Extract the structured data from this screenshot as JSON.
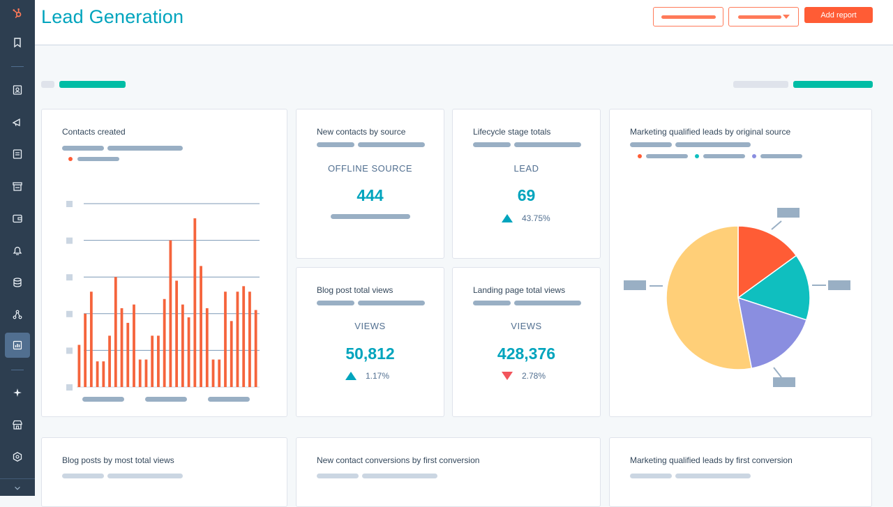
{
  "app": {
    "logo": "hubspot-sprocket-icon"
  },
  "sidebar": {
    "items": [
      {
        "name": "bookmark",
        "icon": "bookmark-icon"
      },
      {
        "name": "contacts",
        "icon": "contact-card-icon"
      },
      {
        "name": "marketing",
        "icon": "megaphone-icon"
      },
      {
        "name": "content",
        "icon": "document-icon"
      },
      {
        "name": "commerce",
        "icon": "store-icon"
      },
      {
        "name": "wallet",
        "icon": "wallet-icon"
      },
      {
        "name": "service",
        "icon": "bell-icon"
      },
      {
        "name": "data",
        "icon": "database-icon"
      },
      {
        "name": "workflows",
        "icon": "network-icon"
      },
      {
        "name": "reporting",
        "icon": "bar-chart-icon",
        "active": true
      },
      {
        "name": "ai",
        "icon": "sparkle-icon"
      },
      {
        "name": "marketplace",
        "icon": "storefront-icon"
      },
      {
        "name": "settings",
        "icon": "hexagon-settings-icon"
      }
    ],
    "expand_icon": "chevron-down-icon"
  },
  "header": {
    "title": "Lead Generation",
    "add_report_label": "Add report"
  },
  "colors": {
    "teal": "#00bda5",
    "brand_teal": "#00a4bd",
    "orange": "#ff5c35",
    "bar_orange": "#f5643c",
    "yellow": "#ffcf78",
    "cyan": "#0fbfbf",
    "purple": "#8a8ee0",
    "red": "#f2545b"
  },
  "cards": {
    "contacts_created": {
      "title": "Contacts created"
    },
    "new_contacts_by_source": {
      "title": "New contacts by source",
      "label": "OFFLINE SOURCE",
      "value": "444"
    },
    "lifecycle_stage_totals": {
      "title": "Lifecycle stage totals",
      "label": "LEAD",
      "value": "69",
      "delta": "43.75%",
      "direction": "up"
    },
    "blog_post_total_views": {
      "title": "Blog post total views",
      "label": "VIEWS",
      "value": "50,812",
      "delta": "1.17%",
      "direction": "up"
    },
    "landing_page_total_views": {
      "title": "Landing page total views",
      "label": "VIEWS",
      "value": "428,376",
      "delta": "2.78%",
      "direction": "down"
    },
    "mql_by_original_source": {
      "title": "Marketing qualified leads by original source"
    },
    "blog_posts_by_most_views": {
      "title": "Blog posts by most total views"
    },
    "new_contact_conversions": {
      "title": "New contact conversions by first conversion"
    },
    "mql_by_first_conversion": {
      "title": "Marketing qualified leads by first conversion"
    }
  },
  "chart_data": [
    {
      "type": "bar",
      "title": "Contacts created",
      "values": [
        0.23,
        0.4,
        0.52,
        0.14,
        0.14,
        0.28,
        0.6,
        0.43,
        0.35,
        0.45,
        0.15,
        0.15,
        0.28,
        0.28,
        0.48,
        0.8,
        0.58,
        0.45,
        0.38,
        0.92,
        0.66,
        0.43,
        0.15,
        0.15,
        0.52,
        0.36,
        0.52,
        0.55,
        0.52,
        0.42
      ],
      "ylim": [
        0,
        1
      ],
      "gridlines": 5,
      "series_color": "#f5643c"
    },
    {
      "type": "pie",
      "title": "Marketing qualified leads by original source",
      "slices": [
        {
          "value": 15,
          "color": "#ff5c35"
        },
        {
          "value": 15,
          "color": "#0fbfbf"
        },
        {
          "value": 17,
          "color": "#8a8ee0"
        },
        {
          "value": 53,
          "color": "#ffcf78"
        }
      ]
    }
  ]
}
